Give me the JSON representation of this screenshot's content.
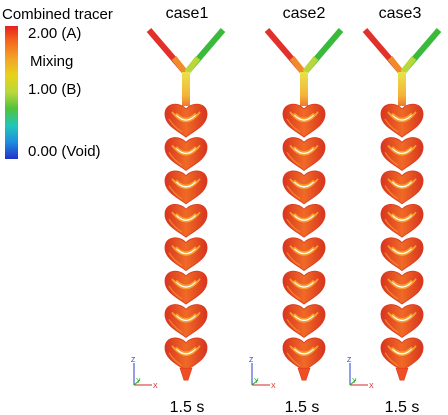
{
  "legend": {
    "title": "Combined tracer",
    "ticks": [
      {
        "label": "2.00 (A)"
      },
      {
        "label": "Mixing"
      },
      {
        "label": "1.00 (B)"
      },
      {
        "label": "0.00 (Void)"
      }
    ],
    "colors": [
      "#e8201c",
      "#f56a1c",
      "#f2a629",
      "#e8d21a",
      "#b8d83a",
      "#53c23d",
      "#20c7b9",
      "#1f8fe0",
      "#2232c8"
    ]
  },
  "cases": [
    {
      "title": "case1",
      "time": "1.5 s"
    },
    {
      "title": "case2",
      "time": "1.5 s"
    },
    {
      "title": "case3",
      "time": "1.5 s"
    }
  ],
  "axes_triad": {
    "z": "Z",
    "y": "Y",
    "x": "X"
  },
  "palette": {
    "inlet_a": "#e2312b",
    "inlet_b": "#3aba3a",
    "merge": "#ece24a",
    "fluid": "#ef4f22",
    "fluid_dark": "#d93a1f",
    "highlight": "#f6a030"
  }
}
